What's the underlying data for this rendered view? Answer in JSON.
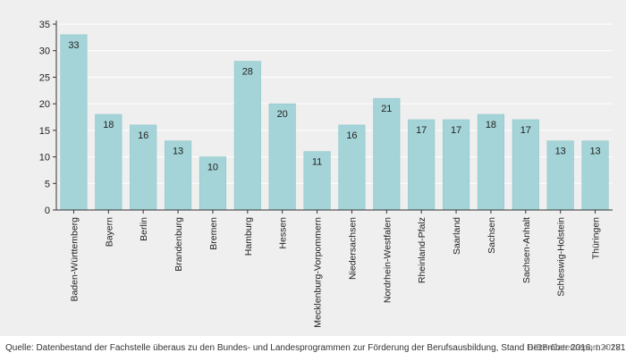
{
  "chart_data": {
    "type": "bar",
    "title": "",
    "xlabel": "",
    "ylabel": "",
    "ylim": [
      0,
      35
    ],
    "yticks": [
      0,
      5,
      10,
      15,
      20,
      25,
      30,
      35
    ],
    "grid": true,
    "categories": [
      "Baden-Württemberg",
      "Bayern",
      "Berlin",
      "Brandenburg",
      "Bremen",
      "Hamburg",
      "Hessen",
      "Mecklenburg-Vorpommern",
      "Niedersachsen",
      "Nordrhein-Westfalen",
      "Rheinland-Pfalz",
      "Saarland",
      "Sachsen",
      "Sachsen-Anhalt",
      "Schleswig-Holstein",
      "Thüringen"
    ],
    "values": [
      33,
      18,
      16,
      13,
      10,
      28,
      20,
      11,
      16,
      21,
      17,
      17,
      18,
      17,
      13,
      13
    ],
    "colors": {
      "bar": "#a4d4d8",
      "bar_edge": "#8cc6cb",
      "grid": "#ffffff",
      "axis": "#333333",
      "panel": "#efefef"
    }
  },
  "footer": {
    "source": "Quelle: Datenbestand der Fachstelle überaus zu den Bundes- und Landesprogrammen zur Förderung der Berufsausbildung, Stand Dezember 2016, n = 281",
    "credit": "BIBB-Datenreport 2017"
  }
}
